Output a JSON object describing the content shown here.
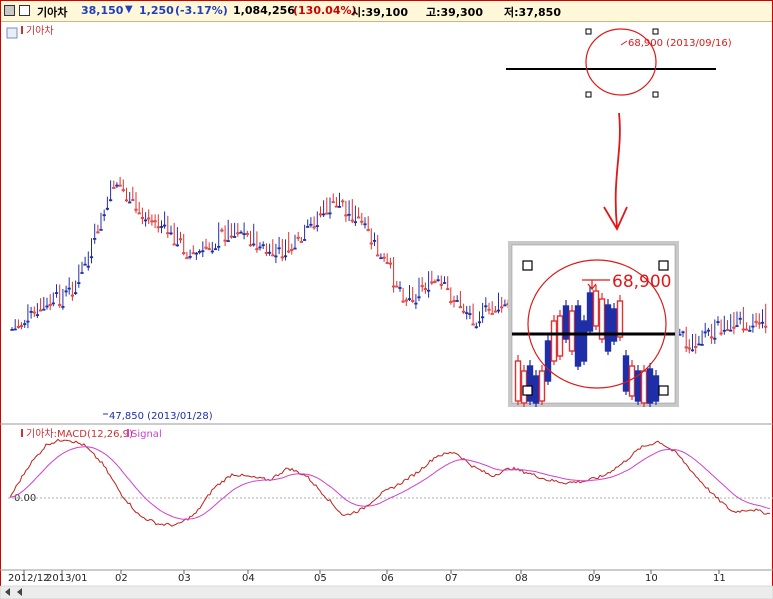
{
  "header": {
    "stock_name": "기아차",
    "price": "38,150",
    "change_arrow": "▼",
    "change": "1,250",
    "change_pct": "(-3.17%)",
    "volume": "1,084,256",
    "volume_pct": "(130.04%)",
    "open": "시:39,100",
    "high": "고:39,300",
    "low": "저:37,850"
  },
  "colors": {
    "up": "#e03030",
    "down": "#1f2fa8",
    "macd": "#c0201a",
    "signal": "#d040d0",
    "annotation": "#e01818",
    "border": "#d00000"
  },
  "price_panel": {
    "title": "기아차",
    "low_note": "47,850 (2013/01/28)",
    "high_note": "68,900 (2013/09/16)",
    "inset_label": "68,900"
  },
  "macd_panel": {
    "title": "기아차:MACD(12,26,9)",
    "signal_legend": "Signal",
    "zero_label": "0.00"
  },
  "chart_data": {
    "type": "candlestick",
    "x_tick_labels": [
      "2012/12",
      "2013/01",
      "02",
      "03",
      "04",
      "05",
      "06",
      "07",
      "08",
      "09",
      "10",
      "11"
    ],
    "anchors": [
      {
        "date": "2012/12",
        "close": 62500
      },
      {
        "date": "2013/01/07",
        "close": 58500
      },
      {
        "date": "2013/01/15",
        "close": 55500
      },
      {
        "date": "2013/01/28",
        "close": 48500
      },
      {
        "date": "2013/02/08",
        "close": 51500
      },
      {
        "date": "2013/02/25",
        "close": 53500
      },
      {
        "date": "2013/03/05",
        "close": 55800
      },
      {
        "date": "2013/03/25",
        "close": 52800
      },
      {
        "date": "2013/04/10",
        "close": 55500
      },
      {
        "date": "2013/04/22",
        "close": 54800
      },
      {
        "date": "2013/04/30",
        "close": 51800
      },
      {
        "date": "2013/05/10",
        "close": 50500
      },
      {
        "date": "2013/05/20",
        "close": 52800
      },
      {
        "date": "2013/05/28",
        "close": 55800
      },
      {
        "date": "2013/06/10",
        "close": 59500
      },
      {
        "date": "2013/06/20",
        "close": 58000
      },
      {
        "date": "2013/06/28",
        "close": 58800
      },
      {
        "date": "2013/07/10",
        "close": 61200
      },
      {
        "date": "2013/07/25",
        "close": 60200
      },
      {
        "date": "2013/08/05",
        "close": 63200
      },
      {
        "date": "2013/08/20",
        "close": 61200
      },
      {
        "date": "2013/08/30",
        "close": 63800
      },
      {
        "date": "2013/09/05",
        "close": 66200
      },
      {
        "date": "2013/09/16",
        "close": 68200
      },
      {
        "date": "2013/09/27",
        "close": 66200
      },
      {
        "date": "2013/10/10",
        "close": 63800
      },
      {
        "date": "2013/10/25",
        "close": 63000
      },
      {
        "date": "2013/11/05",
        "close": 61800
      },
      {
        "date": "2013/11/20",
        "close": 61500
      }
    ],
    "annotations": [
      {
        "text": "47,850 (2013/01/28)",
        "type": "low"
      },
      {
        "text": "68,900 (2013/09/16)",
        "type": "high"
      }
    ],
    "macd_anchors": [
      0.02,
      0.8,
      1.35,
      1.48,
      1.32,
      0.85,
      0.1,
      -0.45,
      -0.65,
      -0.68,
      -0.4,
      0.25,
      0.6,
      0.52,
      0.45,
      0.75,
      0.55,
      0.05,
      -0.45,
      -0.28,
      0.1,
      0.35,
      0.65,
      1.05,
      1.15,
      0.78,
      0.55,
      0.75,
      0.62,
      0.45,
      0.38,
      0.42,
      0.55,
      0.85,
      1.25,
      1.42,
      1.1,
      0.55,
      0.05,
      -0.35,
      -0.28,
      -0.4
    ]
  }
}
